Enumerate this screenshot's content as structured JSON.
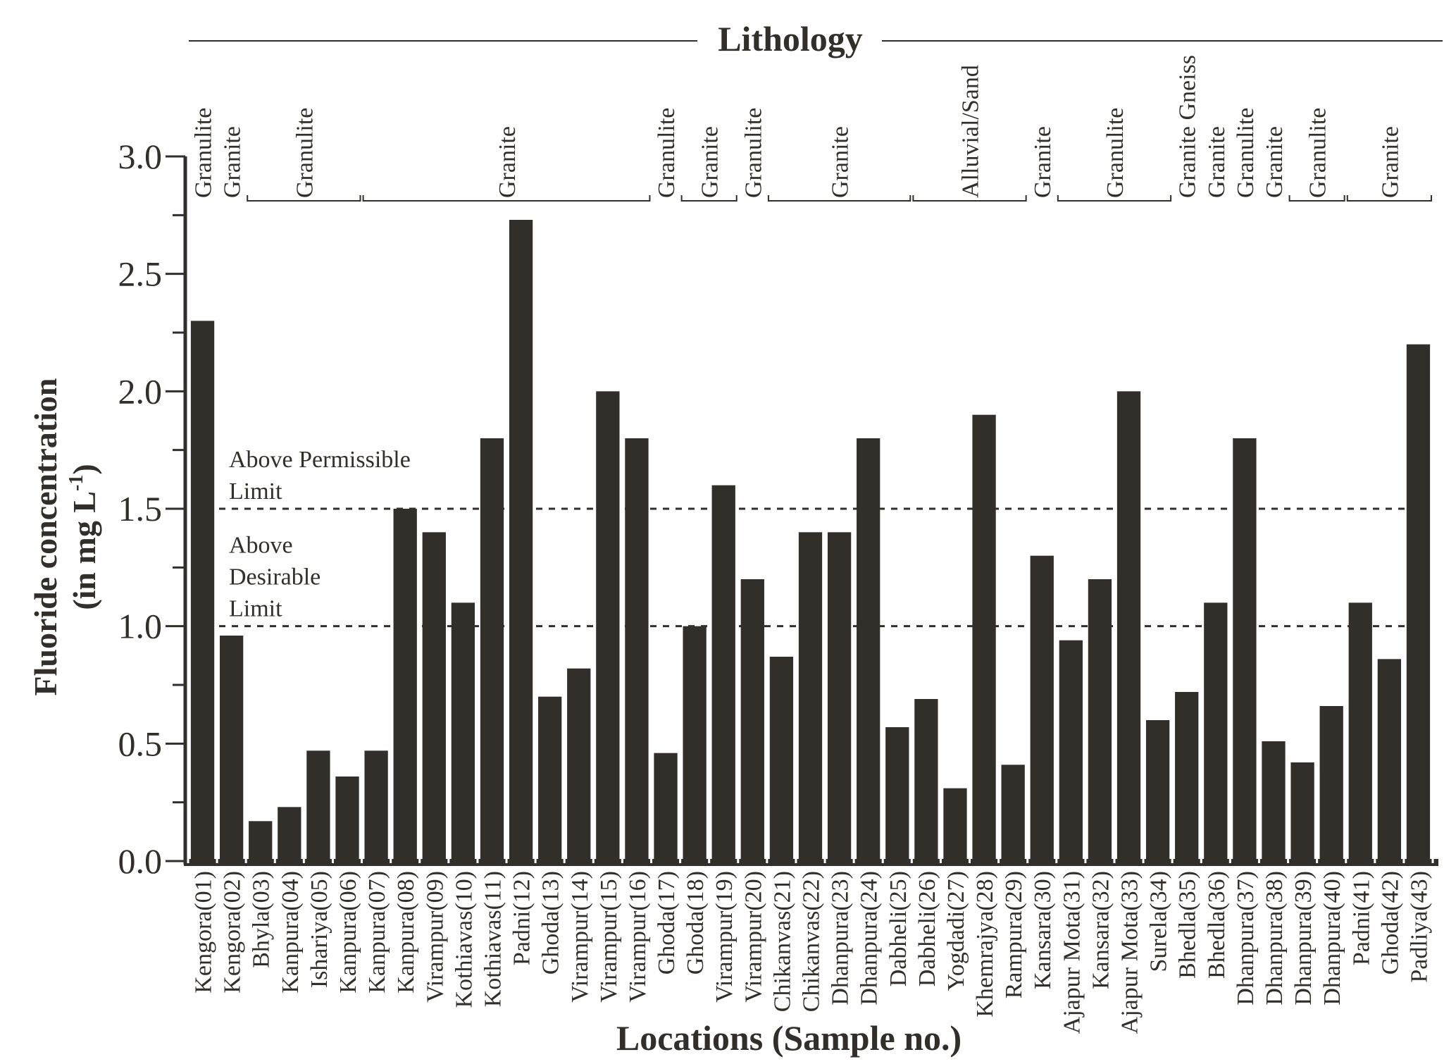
{
  "chart_data": {
    "type": "bar",
    "title": "Lithology",
    "xlabel": "Locations (Sample no.)",
    "ylabel_line1": "Fluoride concentration",
    "ylabel_line2_prefix": "(in mg L",
    "ylabel_line2_sup": "-1",
    "ylabel_line2_suffix": ")",
    "ylim": [
      0,
      3.0
    ],
    "yticks": [
      "0.0",
      "0.5",
      "1.0",
      "1.5",
      "2.0",
      "2.5",
      "3.0"
    ],
    "ytick_values": [
      0,
      0.5,
      1.0,
      1.5,
      2.0,
      2.5,
      3.0
    ],
    "grid": false,
    "bar_color": "#322e29",
    "categories": [
      "Kengora(01)",
      "Kengora(02)",
      "Bhyla(03)",
      "Kanpura(04)",
      "Ishariya(05)",
      "Kanpura(06)",
      "Kanpura(07)",
      "Kanpura(08)",
      "Virampur(09)",
      "Kothiavas(10)",
      "Kothiavas(11)",
      "Padni(12)",
      "Ghoda(13)",
      "Virampur(14)",
      "Virampur(15)",
      "Virampur(16)",
      "Ghoda(17)",
      "Ghoda(18)",
      "Virampur(19)",
      "Virampur(20)",
      "Chikanvas(21)",
      "Chikanvas(22)",
      "Dhanpura(23)",
      "Dhanpura(24)",
      "Dabheli(25)",
      "Dabheli(26)",
      "Yogdadi(27)",
      "Khemrajya(28)",
      "Rampura(29)",
      "Kansara(30)",
      "Ajapur Mota(31)",
      "Kansara(32)",
      "Ajapur Mota(33)",
      "Surela(34)",
      "Bhedla(35)",
      "Bhedla(36)",
      "Dhanpura(37)",
      "Dhanpura(38)",
      "Dhanpura(39)",
      "Dhanpura(40)",
      "Padni(41)",
      "Ghoda(42)",
      "Padliya(43)"
    ],
    "values": [
      2.3,
      0.96,
      0.17,
      0.23,
      0.47,
      0.36,
      0.47,
      1.5,
      1.4,
      1.1,
      1.8,
      2.73,
      0.7,
      0.82,
      2.0,
      1.8,
      0.46,
      1.0,
      1.6,
      1.2,
      0.87,
      1.4,
      1.4,
      1.8,
      0.57,
      0.69,
      0.31,
      1.9,
      0.41,
      1.3,
      0.94,
      1.2,
      2.0,
      0.6,
      0.72,
      1.1,
      1.8,
      0.51,
      0.42,
      0.66,
      1.1,
      0.86,
      2.2
    ],
    "reference_lines": [
      {
        "value": 1.0,
        "style": "dotted",
        "label_lines": [
          "Above",
          "Desirable",
          "Limit"
        ]
      },
      {
        "value": 1.5,
        "style": "dotted",
        "label_lines": [
          "Above Permissible",
          "Limit"
        ]
      }
    ],
    "lithology_groups": [
      {
        "label": "Granulite",
        "from": 1,
        "to": 1
      },
      {
        "label": "Granite",
        "from": 2,
        "to": 2
      },
      {
        "label": "Granulite",
        "from": 3,
        "to": 6
      },
      {
        "label": "Granite",
        "from": 7,
        "to": 16
      },
      {
        "label": "Granulite",
        "from": 17,
        "to": 17
      },
      {
        "label": "Granite",
        "from": 18,
        "to": 19
      },
      {
        "label": "Granulite",
        "from": 20,
        "to": 20
      },
      {
        "label": "Granite",
        "from": 21,
        "to": 25
      },
      {
        "label": "Alluvial/Sand",
        "from": 26,
        "to": 29
      },
      {
        "label": "Granite",
        "from": 30,
        "to": 30
      },
      {
        "label": "Granulite",
        "from": 31,
        "to": 34
      },
      {
        "label": "Granite Gneiss",
        "from": 35,
        "to": 35
      },
      {
        "label": "Granite",
        "from": 36,
        "to": 36
      },
      {
        "label": "Granulite",
        "from": 37,
        "to": 37
      },
      {
        "label": "Granite",
        "from": 38,
        "to": 38
      },
      {
        "label": "Granulite",
        "from": 39,
        "to": 40
      },
      {
        "label": "Granite",
        "from": 41,
        "to": 43
      }
    ]
  }
}
